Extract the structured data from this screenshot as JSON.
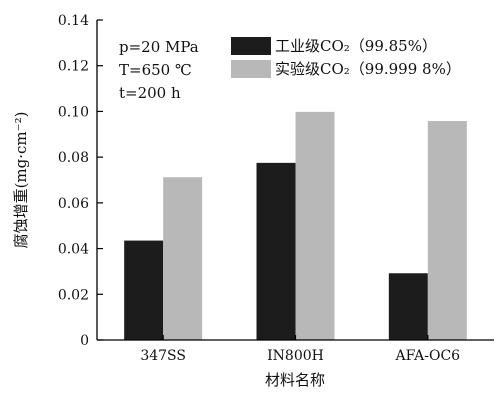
{
  "chart_data": {
    "type": "bar",
    "xlabel": "材料名称",
    "ylabel": "腐蚀增重(mg·cm⁻²)",
    "ylim": [
      0,
      0.14
    ],
    "yticks": [
      "0",
      "0.02",
      "0.04",
      "0.06",
      "0.08",
      "0.10",
      "0.12",
      "0.14"
    ],
    "categories": [
      "347SS",
      "IN800H",
      "AFA-OC6"
    ],
    "series": [
      {
        "name": "工业级CO₂（99.85%）",
        "values": [
          0.0435,
          0.0775,
          0.0292
        ],
        "color": "#1c1c1c"
      },
      {
        "name": "实验级CO₂（99.999 8%）",
        "values": [
          0.0712,
          0.0998,
          0.0958
        ],
        "color": "#b8b8b8"
      }
    ],
    "conditions": [
      "p=20 MPa",
      "T=650 ℃",
      "t=200 h"
    ],
    "legend_position": "top-right",
    "grid": false
  }
}
